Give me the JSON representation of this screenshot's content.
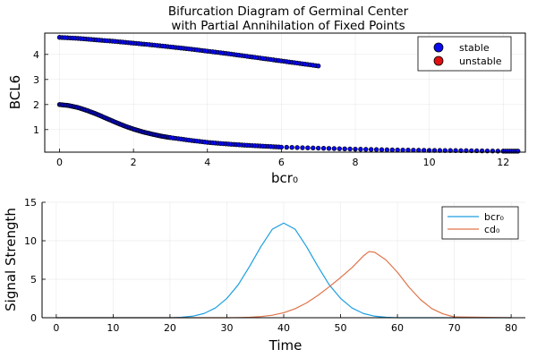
{
  "chart_data": [
    {
      "type": "scatter",
      "title": "Bifurcation Diagram of Germinal Center",
      "subtitle": "with Partial Annihilation of Fixed Points",
      "xlabel": "bcr₀",
      "ylabel": "BCL6",
      "xlim": [
        -0.4,
        12.6
      ],
      "ylim": [
        0.1,
        4.85
      ],
      "xticks": [
        0,
        2,
        4,
        6,
        8,
        10,
        12
      ],
      "yticks": [
        1,
        2,
        3,
        4
      ],
      "grid": true,
      "legend_position": "top-right",
      "legend": [
        {
          "name": "stable",
          "color": "#0a0af0"
        },
        {
          "name": "unstable",
          "color": "#e01010"
        }
      ],
      "marker_stroke_color": "#000000",
      "series": [
        {
          "name": "stable",
          "color": "#0a0af0",
          "x": [
            0.0,
            0.5,
            1.0,
            1.5,
            2.0,
            2.5,
            3.0,
            3.5,
            4.0,
            4.5,
            5.0,
            5.5,
            6.0,
            6.5,
            7.0
          ],
          "y": [
            4.68,
            4.64,
            4.58,
            4.52,
            4.45,
            4.38,
            4.3,
            4.22,
            4.13,
            4.04,
            3.94,
            3.84,
            3.74,
            3.64,
            3.54
          ]
        },
        {
          "name": "stable",
          "color": "#0a0af0",
          "x": [
            0.0,
            0.25,
            0.5,
            0.75,
            1.0,
            1.25,
            1.5,
            1.75,
            2.0,
            2.25,
            2.5,
            2.75,
            3.0,
            3.5,
            4.0,
            4.5,
            5.0,
            5.5,
            6.0,
            7.0,
            8.0,
            9.0,
            10.0,
            11.0,
            12.0,
            12.4
          ],
          "y": [
            2.0,
            1.96,
            1.88,
            1.76,
            1.62,
            1.46,
            1.3,
            1.15,
            1.02,
            0.91,
            0.82,
            0.74,
            0.68,
            0.58,
            0.49,
            0.43,
            0.38,
            0.34,
            0.3,
            0.26,
            0.22,
            0.19,
            0.17,
            0.16,
            0.14,
            0.14
          ]
        }
      ]
    },
    {
      "type": "line",
      "xlabel": "Time",
      "ylabel": "Signal Strength",
      "xlim": [
        -2.5,
        82.5
      ],
      "ylim": [
        0,
        15
      ],
      "xticks": [
        0,
        10,
        20,
        30,
        40,
        50,
        60,
        70,
        80
      ],
      "yticks": [
        0,
        5,
        10,
        15
      ],
      "grid": true,
      "legend_position": "top-right",
      "series": [
        {
          "name": "bcr₀",
          "color": "#1e9fe0",
          "x": [
            20,
            22,
            24,
            26,
            28,
            30,
            32,
            34,
            36,
            38,
            40,
            42,
            44,
            46,
            48,
            50,
            52,
            54,
            56,
            58,
            60
          ],
          "y": [
            0.0,
            0.06,
            0.2,
            0.55,
            1.27,
            2.51,
            4.28,
            6.68,
            9.25,
            11.5,
            12.3,
            11.5,
            9.25,
            6.68,
            4.28,
            2.51,
            1.27,
            0.55,
            0.2,
            0.06,
            0.0
          ]
        },
        {
          "name": "cd₀",
          "color": "#e0744a",
          "x": [
            30,
            32,
            34,
            36,
            38,
            40,
            42,
            44,
            46,
            48,
            50,
            52,
            54,
            55,
            56,
            58,
            60,
            62,
            64,
            66,
            68,
            70
          ],
          "y": [
            0.0,
            0.02,
            0.06,
            0.15,
            0.33,
            0.65,
            1.17,
            1.92,
            2.89,
            4.02,
            5.22,
            6.5,
            8.02,
            8.6,
            8.5,
            7.5,
            5.9,
            4.0,
            2.4,
            1.2,
            0.5,
            0.1
          ]
        }
      ]
    }
  ]
}
